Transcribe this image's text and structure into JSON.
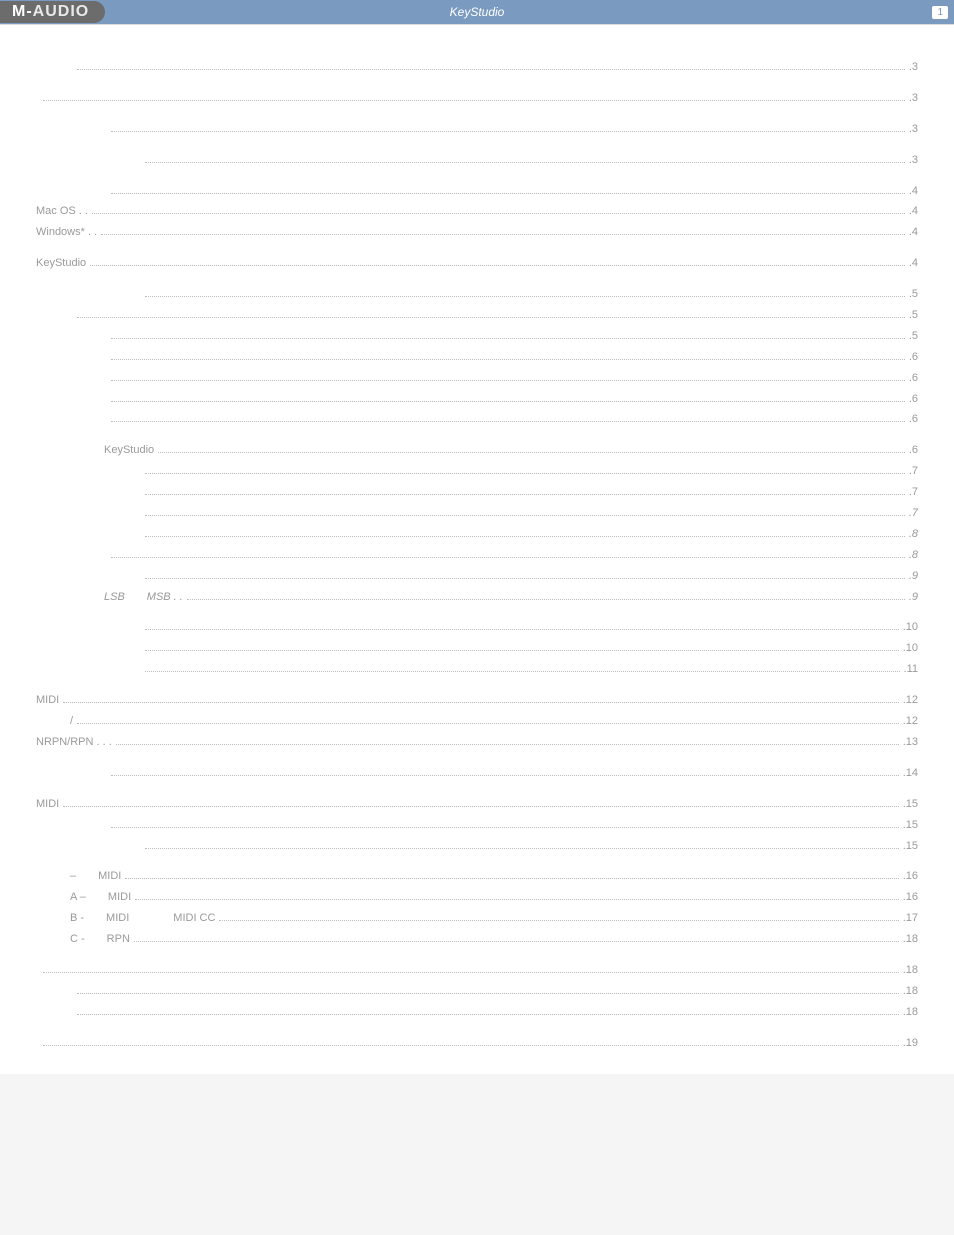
{
  "header": {
    "brand_prefix": "M-",
    "brand_suffix": "AUDIO",
    "title": "KeyStudio",
    "page_number": "1"
  },
  "toc": [
    {
      "label": " ",
      "page": "3",
      "indent": 1,
      "gap": false
    },
    {
      "label": " ",
      "page": "3",
      "indent": 0,
      "gap": true
    },
    {
      "label": " ",
      "page": "3",
      "indent": 2,
      "gap": true
    },
    {
      "label": " ",
      "page": "3",
      "indent": 3,
      "gap": true
    },
    {
      "label": " ",
      "page": "4",
      "indent": 2,
      "gap": true
    },
    {
      "label": "Mac OS . .",
      "page": "4",
      "indent": 0
    },
    {
      "label": "Windows* . .",
      "page": "4",
      "indent": 0
    },
    {
      "label": "KeyStudio",
      "page": "4",
      "indent": 0,
      "gap": true
    },
    {
      "label": " ",
      "page": "5",
      "indent": 3,
      "gap": true
    },
    {
      "label": " ",
      "page": "5",
      "indent": 1
    },
    {
      "label": " ",
      "page": "5",
      "indent": 2
    },
    {
      "label": " ",
      "page": "6",
      "indent": 2
    },
    {
      "label": " ",
      "page": "6",
      "indent": 2
    },
    {
      "label": " ",
      "page": "6",
      "indent": 2
    },
    {
      "label": " ",
      "page": "6",
      "indent": 2
    },
    {
      "label": "KeyStudio",
      "page": "6",
      "indent": 2,
      "gap": true
    },
    {
      "label": " ",
      "page": "7",
      "indent": 3
    },
    {
      "label": " ",
      "page": "7",
      "indent": 3
    },
    {
      "label": " ",
      "page": "7",
      "indent": 3,
      "italic": true
    },
    {
      "label": " ",
      "page": "8",
      "indent": 3,
      "italic": true
    },
    {
      "label": " ",
      "page": "8",
      "indent": 2,
      "italic": true
    },
    {
      "label": " ",
      "page": "9",
      "indent": 3,
      "italic": true
    },
    {
      "label": "LSB  MSB . .",
      "page": "9",
      "indent": 2,
      "italic": true
    },
    {
      "label": " ",
      "page": "10",
      "indent": 3,
      "gap": true
    },
    {
      "label": " ",
      "page": "10",
      "indent": 3
    },
    {
      "label": " ",
      "page": "11",
      "indent": 3
    },
    {
      "label": "MIDI",
      "page": "12",
      "indent": 0,
      "gap": true
    },
    {
      "label": "/",
      "page": "12",
      "indent": 1
    },
    {
      "label": "NRPN/RPN . . .",
      "page": "13",
      "indent": 0
    },
    {
      "label": " ",
      "page": "14",
      "indent": 2,
      "gap": true
    },
    {
      "label": "MIDI",
      "page": "15",
      "indent": 0,
      "gap": true
    },
    {
      "label": " ",
      "page": "15",
      "indent": 2
    },
    {
      "label": " ",
      "page": "15",
      "indent": 3
    },
    {
      "label": "–  MIDI",
      "page": "16",
      "indent": 1,
      "gap": true
    },
    {
      "label": "A –  MIDI",
      "page": "16",
      "indent": 1
    },
    {
      "label": "B -  MIDI    MIDI CC",
      "page": "17",
      "indent": 1
    },
    {
      "label": "C -  RPN",
      "page": "18",
      "indent": 1
    },
    {
      "label": " ",
      "page": "18",
      "indent": 0,
      "gap": true
    },
    {
      "label": " ",
      "page": "18",
      "indent": 1
    },
    {
      "label": " ",
      "page": "18",
      "indent": 1
    },
    {
      "label": " ",
      "page": "19",
      "indent": 0,
      "gap": true
    }
  ]
}
